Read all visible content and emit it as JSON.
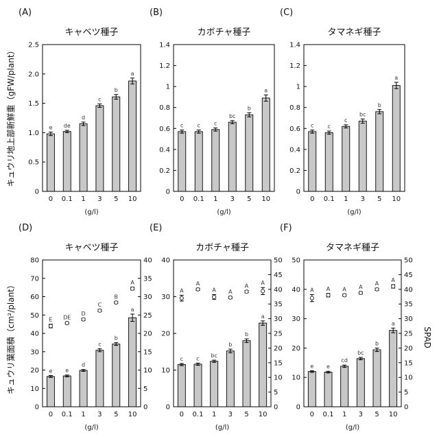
{
  "figure": {
    "y_label_top": "キュウリ地上部新鮮重（gFW/plant）",
    "y_label_bottom": "キュウリ葉面積（cm²/plant）",
    "y2_label": "SPAD",
    "x_unit": "(g/l)"
  },
  "chart_data": [
    {
      "type": "bar",
      "panel": "(A)",
      "title": "キャベツ種子",
      "categories": [
        "0",
        "0.1",
        "1",
        "3",
        "5",
        "10"
      ],
      "ylim": [
        0,
        2.5
      ],
      "yticks": [
        "0",
        "0.5",
        "1.0",
        "1.5",
        "2.0",
        "2.5"
      ],
      "series": [
        {
          "values": [
            0.98,
            1.02,
            1.15,
            1.46,
            1.61,
            1.88
          ],
          "errors": [
            0.03,
            0.02,
            0.03,
            0.03,
            0.04,
            0.05
          ],
          "labels": [
            "e",
            "de",
            "d",
            "c",
            "b",
            "a"
          ]
        }
      ]
    },
    {
      "type": "bar",
      "panel": "(B)",
      "title": "カボチャ種子",
      "categories": [
        "0",
        "0.1",
        "1",
        "3",
        "5",
        "10"
      ],
      "ylim": [
        0,
        1.4
      ],
      "yticks": [
        "0",
        "0.2",
        "0.4",
        "0.6",
        "0.8",
        "1",
        "1.2",
        "1.4"
      ],
      "series": [
        {
          "values": [
            0.57,
            0.57,
            0.59,
            0.66,
            0.73,
            0.89
          ],
          "errors": [
            0.015,
            0.015,
            0.015,
            0.015,
            0.02,
            0.03
          ],
          "labels": [
            "c",
            "c",
            "c",
            "bc",
            "b",
            "a"
          ]
        }
      ]
    },
    {
      "type": "bar",
      "panel": "(C)",
      "title": "タマネギ種子",
      "categories": [
        "0",
        "0.1",
        "1",
        "3",
        "5",
        "10"
      ],
      "ylim": [
        0,
        1.4
      ],
      "yticks": [
        "0",
        "0.2",
        "0.4",
        "0.6",
        "0.8",
        "1",
        "1.2",
        "1.4"
      ],
      "series": [
        {
          "values": [
            0.57,
            0.56,
            0.62,
            0.67,
            0.76,
            1.01
          ],
          "errors": [
            0.015,
            0.015,
            0.015,
            0.02,
            0.02,
            0.03
          ],
          "labels": [
            "c",
            "c",
            "c",
            "bc",
            "b",
            "a"
          ]
        }
      ]
    },
    {
      "type": "bar",
      "panel": "(D)",
      "title": "キャベツ種子",
      "categories": [
        "0",
        "0.1",
        "1",
        "3",
        "5",
        "10"
      ],
      "ylim": [
        0,
        80
      ],
      "yticks": [
        "0",
        "10",
        "20",
        "30",
        "40",
        "50",
        "60",
        "70",
        "80"
      ],
      "y2lim": [
        0,
        40
      ],
      "y2ticks": [
        "0",
        "5",
        "10",
        "15",
        "20",
        "25",
        "30",
        "35",
        "40"
      ],
      "series": [
        {
          "kind": "bar",
          "values": [
            16.5,
            16.8,
            19.8,
            30.8,
            34.2,
            48.5
          ],
          "errors": [
            0.5,
            0.5,
            0.5,
            0.8,
            0.8,
            2.0
          ],
          "labels": [
            "e",
            "e",
            "d",
            "c",
            "b",
            "a"
          ]
        },
        {
          "kind": "spad",
          "axis": "right",
          "values": [
            22,
            22.8,
            23.8,
            26.2,
            28.4,
            32.2
          ],
          "errors": [
            0.5,
            0.3,
            0.3,
            0.3,
            0.3,
            0.4
          ],
          "labels": [
            "E",
            "DE",
            "D",
            "C",
            "B",
            "A"
          ]
        }
      ]
    },
    {
      "type": "bar",
      "panel": "(E)",
      "title": "カボチャ種子",
      "categories": [
        "0",
        "0.1",
        "1",
        "3",
        "5",
        "10"
      ],
      "ylim": [
        0,
        40
      ],
      "yticks": [
        "0",
        "10",
        "20",
        "30",
        "40"
      ],
      "y2lim": [
        0,
        50
      ],
      "y2ticks": [
        "0",
        "5",
        "10",
        "15",
        "20",
        "25",
        "30",
        "35",
        "40",
        "45",
        "50"
      ],
      "series": [
        {
          "kind": "bar",
          "values": [
            11.5,
            11.6,
            12.4,
            15.2,
            18.0,
            22.8
          ],
          "errors": [
            0.3,
            0.3,
            0.3,
            0.5,
            0.5,
            0.6
          ],
          "labels": [
            "c",
            "c",
            "bc",
            "b",
            "b",
            "a"
          ]
        },
        {
          "kind": "spad",
          "axis": "right",
          "values": [
            37,
            40,
            37.4,
            37.2,
            39.2,
            39.4
          ],
          "errors": [
            1.0,
            0.4,
            0.8,
            0.4,
            0.4,
            1.2
          ],
          "labels": [
            "A",
            "A",
            "A",
            "A",
            "A",
            "A"
          ]
        }
      ]
    },
    {
      "type": "bar",
      "panel": "(F)",
      "title": "タマネギ種子",
      "categories": [
        "0",
        "0.1",
        "1",
        "3",
        "5",
        "10"
      ],
      "ylim": [
        0,
        50
      ],
      "yticks": [
        "0",
        "10",
        "20",
        "30",
        "40",
        "50"
      ],
      "y2lim": [
        0,
        50
      ],
      "y2ticks": [
        "0",
        "5",
        "10",
        "15",
        "20",
        "25",
        "30",
        "35",
        "40",
        "45",
        "50"
      ],
      "series": [
        {
          "kind": "bar",
          "values": [
            12.0,
            11.8,
            13.8,
            16.4,
            19.4,
            26.0
          ],
          "errors": [
            0.3,
            0.3,
            0.4,
            0.4,
            0.6,
            0.8
          ],
          "labels": [
            "e",
            "e",
            "cd",
            "bc",
            "b",
            "a"
          ]
        },
        {
          "kind": "spad",
          "axis": "right",
          "values": [
            37,
            38,
            38,
            38.8,
            40,
            41
          ],
          "errors": [
            1.2,
            0.6,
            0.4,
            0.4,
            0.4,
            0.6
          ],
          "labels": [
            "A",
            "A",
            "A",
            "A",
            "A",
            "A"
          ]
        }
      ]
    }
  ]
}
